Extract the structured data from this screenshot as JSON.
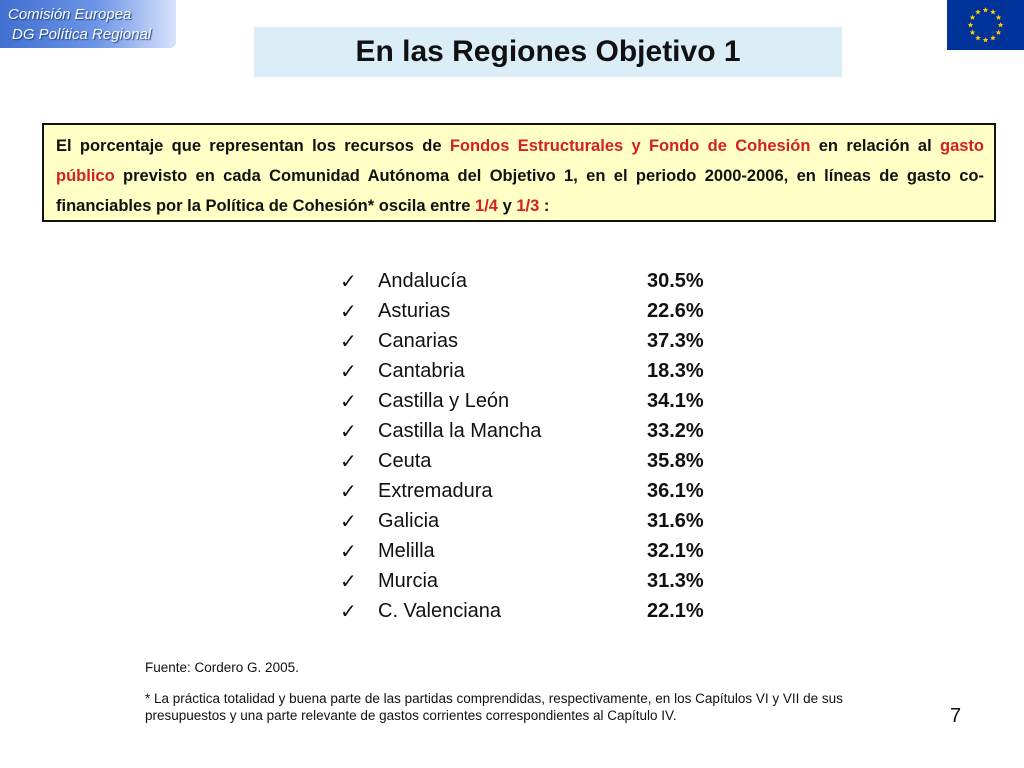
{
  "header": {
    "org_line1": "Comisión Europea",
    "org_line2": "DG Política Regional",
    "flag_color": "#003399",
    "star_color": "#ffcc00",
    "flag_icon": "eu-flag-icon"
  },
  "title": "En las Regiones Objetivo 1",
  "intro": {
    "t1": "El porcentaje que representan los recursos de ",
    "h1": "Fondos Estructurales y Fondo de Cohesión",
    "t2": " en relación al ",
    "h2": "gasto público",
    "t3": " previsto en cada Comunidad Autónoma del Objetivo 1, en el periodo 2000-2006, en líneas de gasto co-financiables por la Política de Cohesión* oscila entre ",
    "h3": "1/4",
    "t4": " y ",
    "h4": "1/3",
    "t5": " :",
    "highlight_color": "#d42020",
    "box_color": "#ffffc6"
  },
  "regions": [
    {
      "name": "Andalucía",
      "value": "30.5%"
    },
    {
      "name": "Asturias",
      "value": "22.6%"
    },
    {
      "name": "Canarias",
      "value": "37.3%"
    },
    {
      "name": "Cantabria",
      "value": "18.3%"
    },
    {
      "name": "Castilla y León",
      "value": "34.1%"
    },
    {
      "name": "Castilla la Mancha",
      "value": "33.2%"
    },
    {
      "name": "Ceuta",
      "value": "35.8%"
    },
    {
      "name": "Extremadura",
      "value": "36.1%"
    },
    {
      "name": "Galicia",
      "value": "31.6%"
    },
    {
      "name": "Melilla",
      "value": "32.1%"
    },
    {
      "name": "Murcia",
      "value": "31.3%"
    },
    {
      "name": "C. Valenciana",
      "value": "22.1%"
    }
  ],
  "list_marker": "✓",
  "source": "Fuente: Cordero G. 2005.",
  "footnote": "* La práctica totalidad y buena parte de las partidas comprendidas, respectivamente, en los Capítulos VI y VII de sus presupuestos y una parte relevante de gastos corrientes correspondientes al Capítulo IV.",
  "page_number": "7"
}
